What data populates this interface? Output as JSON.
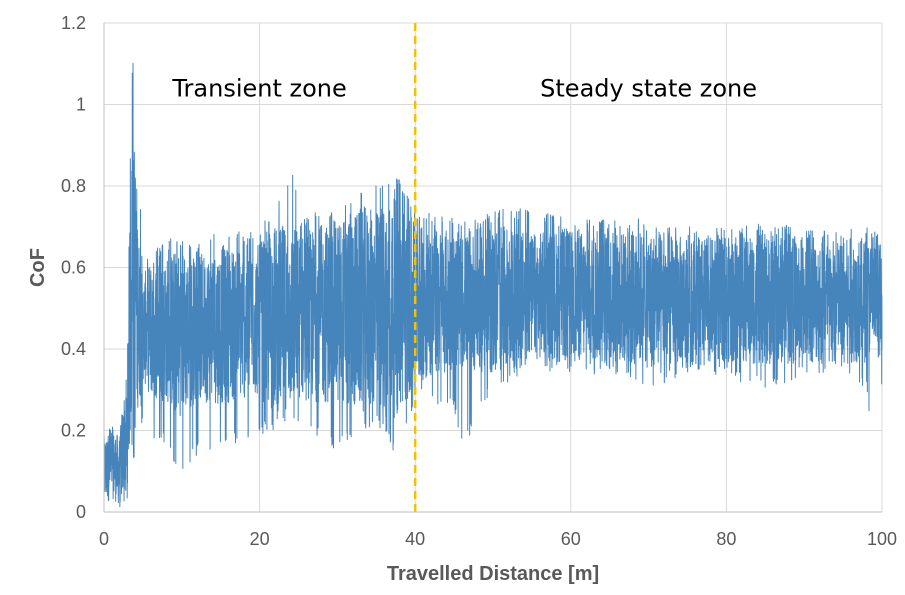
{
  "chart_data": {
    "type": "line",
    "title": "",
    "xlabel": "Travelled Distance [m]",
    "ylabel": "CoF",
    "xlim": [
      0,
      100
    ],
    "ylim": [
      0,
      1.2
    ],
    "x_ticks": [
      0,
      20,
      40,
      60,
      80,
      100
    ],
    "y_ticks": [
      0,
      0.2,
      0.4,
      0.6,
      0.8,
      1,
      1.2
    ],
    "x_tick_labels": [
      "0",
      "20",
      "40",
      "60",
      "80",
      "100"
    ],
    "y_tick_labels": [
      "0",
      "0.2",
      "0.4",
      "0.6",
      "0.8",
      "1",
      "1.2"
    ],
    "grid": true,
    "legend": "none",
    "series": [
      {
        "color": "#4685bb",
        "x": [
          0,
          1,
          2,
          3,
          3.5,
          4,
          4.5,
          5,
          6,
          8,
          9,
          10,
          12,
          15,
          20,
          24.5,
          25,
          30,
          35,
          38,
          40,
          45,
          46,
          50,
          55,
          60,
          65,
          70,
          75,
          80,
          85,
          90,
          95,
          98,
          99,
          100
        ],
        "y_max": [
          0.22,
          0.22,
          0.2,
          0.4,
          1.04,
          1.19,
          0.85,
          0.6,
          0.65,
          0.66,
          0.68,
          0.68,
          0.66,
          0.69,
          0.69,
          0.86,
          0.72,
          0.76,
          0.81,
          0.82,
          0.74,
          0.72,
          0.71,
          0.74,
          0.75,
          0.72,
          0.72,
          0.72,
          0.7,
          0.7,
          0.71,
          0.7,
          0.7,
          0.7,
          0.69,
          0.68
        ],
        "y_min": [
          0.0,
          0.02,
          0.0,
          0.03,
          0.15,
          0.12,
          0.25,
          0.2,
          0.18,
          0.17,
          0.1,
          0.1,
          0.14,
          0.15,
          0.19,
          0.22,
          0.22,
          0.15,
          0.22,
          0.12,
          0.28,
          0.25,
          0.15,
          0.3,
          0.35,
          0.33,
          0.34,
          0.3,
          0.34,
          0.33,
          0.3,
          0.33,
          0.35,
          0.3,
          0.14,
          0.3
        ],
        "y_mean": [
          0.1,
          0.12,
          0.1,
          0.22,
          0.55,
          0.55,
          0.48,
          0.45,
          0.45,
          0.45,
          0.44,
          0.44,
          0.45,
          0.46,
          0.47,
          0.48,
          0.48,
          0.49,
          0.5,
          0.5,
          0.51,
          0.52,
          0.52,
          0.52,
          0.53,
          0.53,
          0.53,
          0.52,
          0.52,
          0.52,
          0.52,
          0.52,
          0.52,
          0.52,
          0.52,
          0.52
        ]
      }
    ],
    "reference_line": {
      "x": 40,
      "color": "#f2c200",
      "style": "dashed"
    },
    "annotations": [
      {
        "text": "Transient zone",
        "x": 20,
        "y": 1.02
      },
      {
        "text": "Steady state zone",
        "x": 70,
        "y": 1.02
      }
    ]
  }
}
